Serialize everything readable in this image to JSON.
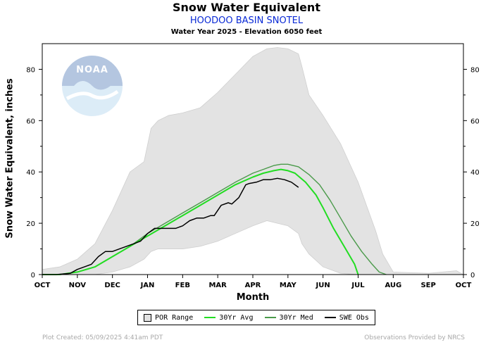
{
  "header": {
    "title": "Snow Water Equivalent",
    "station": "HOODOO BASIN SNOTEL",
    "info": "Water Year 2025 -  Elevation 6050 feet"
  },
  "footer": {
    "created": "Plot Created: 05/09/2025 4:41am PDT",
    "credit": "Observations Provided by NRCS"
  },
  "logo": {
    "text": "NOAA",
    "icon": "noaa-logo"
  },
  "legend": [
    {
      "label": "POR Range",
      "color": "#e3e3e3",
      "kind": "box"
    },
    {
      "label": "30Yr Avg",
      "color": "#22dd22",
      "kind": "line"
    },
    {
      "label": "30Yr Med",
      "color": "#4a9a4a",
      "kind": "line"
    },
    {
      "label": "SWE Obs",
      "color": "#000000",
      "kind": "line"
    }
  ],
  "chart_data": {
    "type": "line",
    "title": "Snow Water Equivalent",
    "xlabel": "Month",
    "ylabel": "Snow Water Equivalent, inches",
    "x_unit": "months since Oct 1",
    "xlim": [
      0,
      12
    ],
    "ylim": [
      0,
      90
    ],
    "x_ticks": [
      "OCT",
      "NOV",
      "DEC",
      "JAN",
      "FEB",
      "MAR",
      "APR",
      "MAY",
      "JUN",
      "JUL",
      "AUG",
      "SEP",
      "OCT"
    ],
    "y_ticks": [
      0,
      20,
      40,
      60,
      80
    ],
    "grid": false,
    "colors": {
      "range": "#e3e3e3",
      "avg": "#22dd22",
      "med": "#4a9a4a",
      "obs": "#000000"
    },
    "por_range": {
      "x": [
        0,
        0.5,
        1,
        1.5,
        2,
        2.5,
        2.9,
        3.1,
        3.3,
        3.6,
        4,
        4.5,
        5,
        5.5,
        6,
        6.4,
        6.7,
        7,
        7.3,
        7.4,
        7.6,
        8,
        8.5,
        9,
        9.5,
        9.7,
        10,
        11,
        11.8,
        12
      ],
      "upper": [
        2,
        3,
        6,
        12,
        25,
        40,
        44,
        57,
        60,
        62,
        63,
        65,
        71,
        78,
        85,
        88,
        88.5,
        88,
        86,
        81,
        70,
        62,
        51,
        36,
        17,
        8,
        1,
        0.5,
        1.5,
        0
      ],
      "lower": [
        0,
        0,
        0,
        0,
        1,
        3,
        6,
        9,
        10,
        10,
        10,
        11,
        13,
        16,
        19,
        21,
        20,
        19,
        16,
        12,
        8,
        3,
        0.5,
        0,
        0,
        0,
        0,
        0,
        0,
        0
      ]
    },
    "series": [
      {
        "name": "30Yr Avg",
        "x": [
          0,
          0.5,
          1,
          1.5,
          2,
          2.5,
          3,
          3.5,
          4,
          4.5,
          5,
          5.5,
          6,
          6.3,
          6.6,
          6.8,
          7,
          7.2,
          7.5,
          7.8,
          8,
          8.3,
          8.6,
          8.9,
          9
        ],
        "values": [
          0,
          0,
          1,
          3,
          7,
          11,
          15,
          19,
          23,
          27,
          31,
          35,
          38,
          39.5,
          40.5,
          41,
          40.5,
          39.5,
          36,
          31,
          26,
          18,
          11,
          4,
          0
        ]
      },
      {
        "name": "30Yr Med",
        "x": [
          0,
          0.5,
          1,
          1.5,
          2,
          2.5,
          3,
          3.5,
          4,
          4.5,
          5,
          5.5,
          6,
          6.3,
          6.6,
          6.8,
          7,
          7.3,
          7.6,
          7.9,
          8.2,
          8.5,
          8.8,
          9.1,
          9.4,
          9.6,
          9.8
        ],
        "values": [
          0,
          0,
          1,
          3,
          7,
          11,
          16,
          20,
          24,
          28,
          32,
          36,
          39.5,
          41,
          42.5,
          43,
          43,
          42,
          39,
          35,
          29,
          22,
          15,
          9,
          4,
          1,
          0
        ]
      },
      {
        "name": "SWE Obs",
        "x": [
          0,
          0.4,
          0.8,
          1.0,
          1.2,
          1.4,
          1.6,
          1.8,
          2.0,
          2.2,
          2.4,
          2.6,
          2.8,
          3.0,
          3.2,
          3.5,
          3.8,
          4.0,
          4.2,
          4.4,
          4.6,
          4.8,
          4.9,
          5.1,
          5.3,
          5.4,
          5.6,
          5.8,
          5.9,
          6.1,
          6.3,
          6.5,
          6.7,
          6.9,
          7.1,
          7.3
        ],
        "values": [
          0,
          0,
          0.5,
          2,
          3,
          4,
          7,
          9,
          9,
          10,
          11,
          12,
          13,
          16,
          18,
          18,
          18,
          19,
          21,
          22,
          22,
          23,
          23,
          27,
          28,
          27.5,
          30,
          35,
          35.5,
          36,
          37,
          37,
          37.5,
          37,
          36,
          34
        ]
      }
    ]
  }
}
